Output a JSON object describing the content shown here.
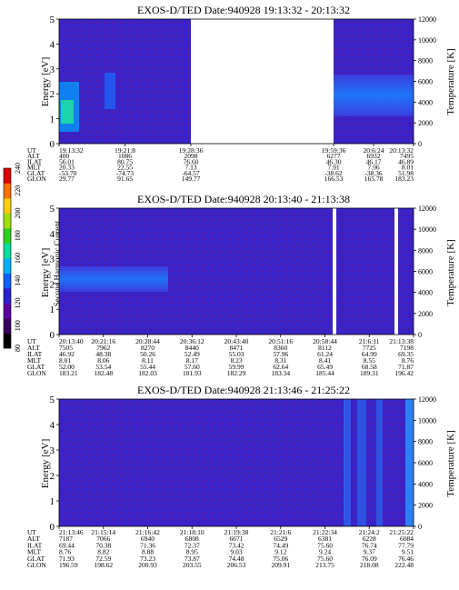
{
  "colorbar": {
    "label": "Second Harmonic Current",
    "ticks": [
      "80",
      "100",
      "120",
      "140",
      "160",
      "180",
      "200",
      "220",
      "240"
    ],
    "colors": [
      "#000000",
      "#3a0060",
      "#5a00a0",
      "#2a20d0",
      "#1060ff",
      "#00b0ff",
      "#00e0a0",
      "#30d020",
      "#a0e000",
      "#ffd000",
      "#ff7000",
      "#e00000"
    ]
  },
  "chart_data": [
    {
      "type": "heatmap",
      "title": "EXOS-D/TED   Date:940928   19:13:32 - 20:13:32",
      "ylabel": "Energy [eV]",
      "y2label": "Temperature [K]",
      "ylim": [
        0,
        5
      ],
      "y2lim": [
        0,
        12000
      ],
      "yticks": [
        "0",
        "1",
        "2",
        "3",
        "4",
        "5"
      ],
      "y2ticks": [
        "0",
        "2000",
        "4000",
        "6000",
        "8000",
        "10000",
        "12000"
      ],
      "segments": [
        {
          "start": "19:13:32",
          "end": "19:38:36"
        },
        {
          "start": "19:59:36",
          "end": "20:13:32"
        }
      ],
      "rows": [
        {
          "label": "UT",
          "values": [
            "19:13:32",
            "19:21:8",
            "19:28:36",
            "19:59:36",
            "20:6:24",
            "20:13:32"
          ]
        },
        {
          "label": "ALT",
          "values": [
            "400",
            "1086",
            "2098",
            "6277",
            "6932",
            "7495"
          ]
        },
        {
          "label": "ILAT",
          "values": [
            "56.01",
            "80.75",
            "76.60",
            "46.30",
            "46.17",
            "46.89"
          ]
        },
        {
          "label": "MLT",
          "values": [
            "20.33",
            "22.55",
            "7.13",
            "7.91",
            "7.96",
            "8.01"
          ]
        },
        {
          "label": "GLAT",
          "values": [
            "-53.70",
            "-74.73",
            "-64.57",
            "-38.62",
            "-38.36",
            "51.98"
          ]
        },
        {
          "label": "GLON",
          "values": [
            "29.77",
            "91.65",
            "149.77",
            "166.53",
            "165.78",
            "183.23"
          ]
        }
      ]
    },
    {
      "type": "heatmap",
      "title": "EXOS-D/TED   Date:940928   20:13:40 - 21:13:38",
      "ylabel": "Energy [eV]",
      "y2label": "Temperature [K]",
      "ylim": [
        0,
        5
      ],
      "y2lim": [
        0,
        12000
      ],
      "yticks": [
        "0",
        "1",
        "2",
        "3",
        "4",
        "5"
      ],
      "y2ticks": [
        "0",
        "2000",
        "4000",
        "6000",
        "8000",
        "10000",
        "12000"
      ],
      "rows": [
        {
          "label": "UT",
          "values": [
            "20:13:40",
            "20:21:16",
            "20:28:44",
            "20:36:12",
            "20:43:40",
            "20:51:16",
            "20:58:44",
            "21:6:11",
            "21:13:38"
          ]
        },
        {
          "label": "ALT",
          "values": [
            "7505",
            "7962",
            "8270",
            "8440",
            "8471",
            "8360",
            "8112",
            "7725",
            "7198"
          ]
        },
        {
          "label": "ILAT",
          "values": [
            "46.92",
            "48.38",
            "50.26",
            "52.49",
            "55.03",
            "57.96",
            "61.24",
            "64.99",
            "69.35"
          ]
        },
        {
          "label": "MLT",
          "values": [
            "8.01",
            "8.06",
            "8.11",
            "8.17",
            "8.23",
            "8.31",
            "8.41",
            "8.55",
            "8.76"
          ]
        },
        {
          "label": "GLAT",
          "values": [
            "52.00",
            "53.54",
            "55.44",
            "57.60",
            "59.99",
            "62.64",
            "65.49",
            "68.58",
            "71.87"
          ]
        },
        {
          "label": "GLON",
          "values": [
            "183.21",
            "182.48",
            "182.03",
            "181.93",
            "182.29",
            "183.34",
            "185.44",
            "189.31",
            "196.42"
          ]
        }
      ]
    },
    {
      "type": "heatmap",
      "title": "EXOS-D/TED   Date:940928   21:13:46 - 21:25:22",
      "ylabel": "Energy [eV]",
      "y2label": "Temperature [K]",
      "ylim": [
        0,
        5
      ],
      "y2lim": [
        0,
        12000
      ],
      "yticks": [
        "0",
        "1",
        "2",
        "3",
        "4",
        "5"
      ],
      "y2ticks": [
        "0",
        "2000",
        "4000",
        "6000",
        "8000",
        "10000",
        "12000"
      ],
      "rows": [
        {
          "label": "UT",
          "values": [
            "21:13:46",
            "21:15:14",
            "21:16:42",
            "21:18:10",
            "21:19:38",
            "21:21:6",
            "21:22:34",
            "21:24:2",
            "21:25:22"
          ]
        },
        {
          "label": "ALT",
          "values": [
            "7187",
            "7066",
            "6940",
            "6808",
            "6671",
            "6529",
            "6381",
            "6228",
            "6084"
          ]
        },
        {
          "label": "ILAT",
          "values": [
            "69.44",
            "70.38",
            "71.36",
            "72.37",
            "73.42",
            "74.49",
            "75.60",
            "76.74",
            "77.79"
          ]
        },
        {
          "label": "MLT",
          "values": [
            "8.76",
            "8.82",
            "8.88",
            "8.95",
            "9.03",
            "9.12",
            "9.24",
            "9.37",
            "9.51"
          ]
        },
        {
          "label": "GLAT",
          "values": [
            "71.93",
            "72.59",
            "73.23",
            "73.87",
            "74.48",
            "75.06",
            "75.60",
            "76.09",
            "76.46"
          ]
        },
        {
          "label": "GLON",
          "values": [
            "196.59",
            "198.62",
            "200.93",
            "203.55",
            "206.53",
            "209.91",
            "213.75",
            "218.08",
            "222.48"
          ]
        }
      ]
    }
  ]
}
